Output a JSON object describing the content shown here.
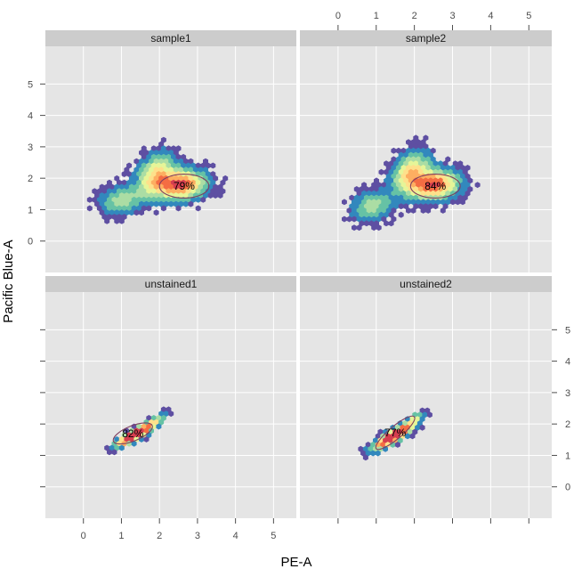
{
  "chart_data": {
    "type": "scatter",
    "style": "hexbin-density-facets",
    "xlabel": "PE-A",
    "ylabel": "Pacific Blue-A",
    "xlim": [
      -1,
      5.6
    ],
    "ylim": [
      -1,
      6.2
    ],
    "x_ticks": [
      0,
      1,
      2,
      3,
      4,
      5
    ],
    "y_ticks": [
      0,
      1,
      2,
      3,
      4,
      5
    ],
    "x_tick_labels": [
      "0",
      "1",
      "2",
      "3",
      "4",
      "5"
    ],
    "y_tick_labels": [
      "0",
      "1",
      "2",
      "3",
      "4",
      "5"
    ],
    "grid": true,
    "panels": [
      {
        "name": "sample1",
        "gate": {
          "cx": 2.65,
          "cy": 1.75,
          "rx": 0.65,
          "ry": 0.38,
          "percent_label": "79%"
        },
        "clusters": [
          {
            "cx": 2.55,
            "cy": 1.78,
            "sx": 0.42,
            "sy": 0.3,
            "rho": 0.1,
            "w": 0.5
          },
          {
            "cx": 1.9,
            "cy": 2.1,
            "sx": 0.32,
            "sy": 0.45,
            "rho": 0.35,
            "w": 0.3
          },
          {
            "cx": 1.0,
            "cy": 1.3,
            "sx": 0.35,
            "sy": 0.3,
            "rho": 0.2,
            "w": 0.2
          }
        ],
        "range": {
          "xmin": 0.1,
          "xmax": 4.2,
          "ymin": 0.2,
          "ymax": 3.9
        }
      },
      {
        "name": "sample2",
        "gate": {
          "cx": 2.55,
          "cy": 1.75,
          "rx": 0.65,
          "ry": 0.38,
          "percent_label": "84%"
        },
        "clusters": [
          {
            "cx": 2.5,
            "cy": 1.78,
            "sx": 0.42,
            "sy": 0.3,
            "rho": 0.1,
            "w": 0.5
          },
          {
            "cx": 1.9,
            "cy": 2.2,
            "sx": 0.32,
            "sy": 0.42,
            "rho": 0.35,
            "w": 0.3
          },
          {
            "cx": 0.9,
            "cy": 1.1,
            "sx": 0.35,
            "sy": 0.3,
            "rho": 0.2,
            "w": 0.2
          }
        ],
        "range": {
          "xmin": 0.1,
          "xmax": 4.2,
          "ymin": 0.1,
          "ymax": 4.1
        }
      },
      {
        "name": "unstained1",
        "gate": {
          "cx": 1.3,
          "cy": 1.7,
          "rx": 0.55,
          "ry": 0.24,
          "angle": -22,
          "percent_label": "82%"
        },
        "clusters": [
          {
            "cx": 1.35,
            "cy": 1.65,
            "sx": 0.3,
            "sy": 0.22,
            "rho": 0.85,
            "w": 0.8
          },
          {
            "cx": 1.9,
            "cy": 2.1,
            "sx": 0.18,
            "sy": 0.16,
            "rho": 0.7,
            "w": 0.2
          }
        ],
        "range": {
          "xmin": 0.1,
          "xmax": 2.6,
          "ymin": 0.5,
          "ymax": 2.6
        }
      },
      {
        "name": "unstained2",
        "gate": {
          "cx": 1.5,
          "cy": 1.72,
          "rx": 0.65,
          "ry": 0.2,
          "angle": -40,
          "percent_label": "77%"
        },
        "clusters": [
          {
            "cx": 1.45,
            "cy": 1.6,
            "sx": 0.32,
            "sy": 0.25,
            "rho": 0.85,
            "w": 0.8
          },
          {
            "cx": 2.0,
            "cy": 2.15,
            "sx": 0.16,
            "sy": 0.16,
            "rho": 0.7,
            "w": 0.2
          }
        ],
        "range": {
          "xmin": 0.4,
          "xmax": 2.6,
          "ymin": 0.6,
          "ymax": 2.7
        }
      }
    ],
    "colors": {
      "panel_bg": "#e5e5e5",
      "strip_bg": "#cccccc",
      "grid": "#ffffff",
      "gate_line": "#7f3f5f",
      "density_palette": [
        "#5e4fa2",
        "#3288bd",
        "#66c2a5",
        "#abdda4",
        "#e6f598",
        "#fee08b",
        "#fdae61",
        "#f46d43",
        "#d53e4f"
      ]
    }
  }
}
